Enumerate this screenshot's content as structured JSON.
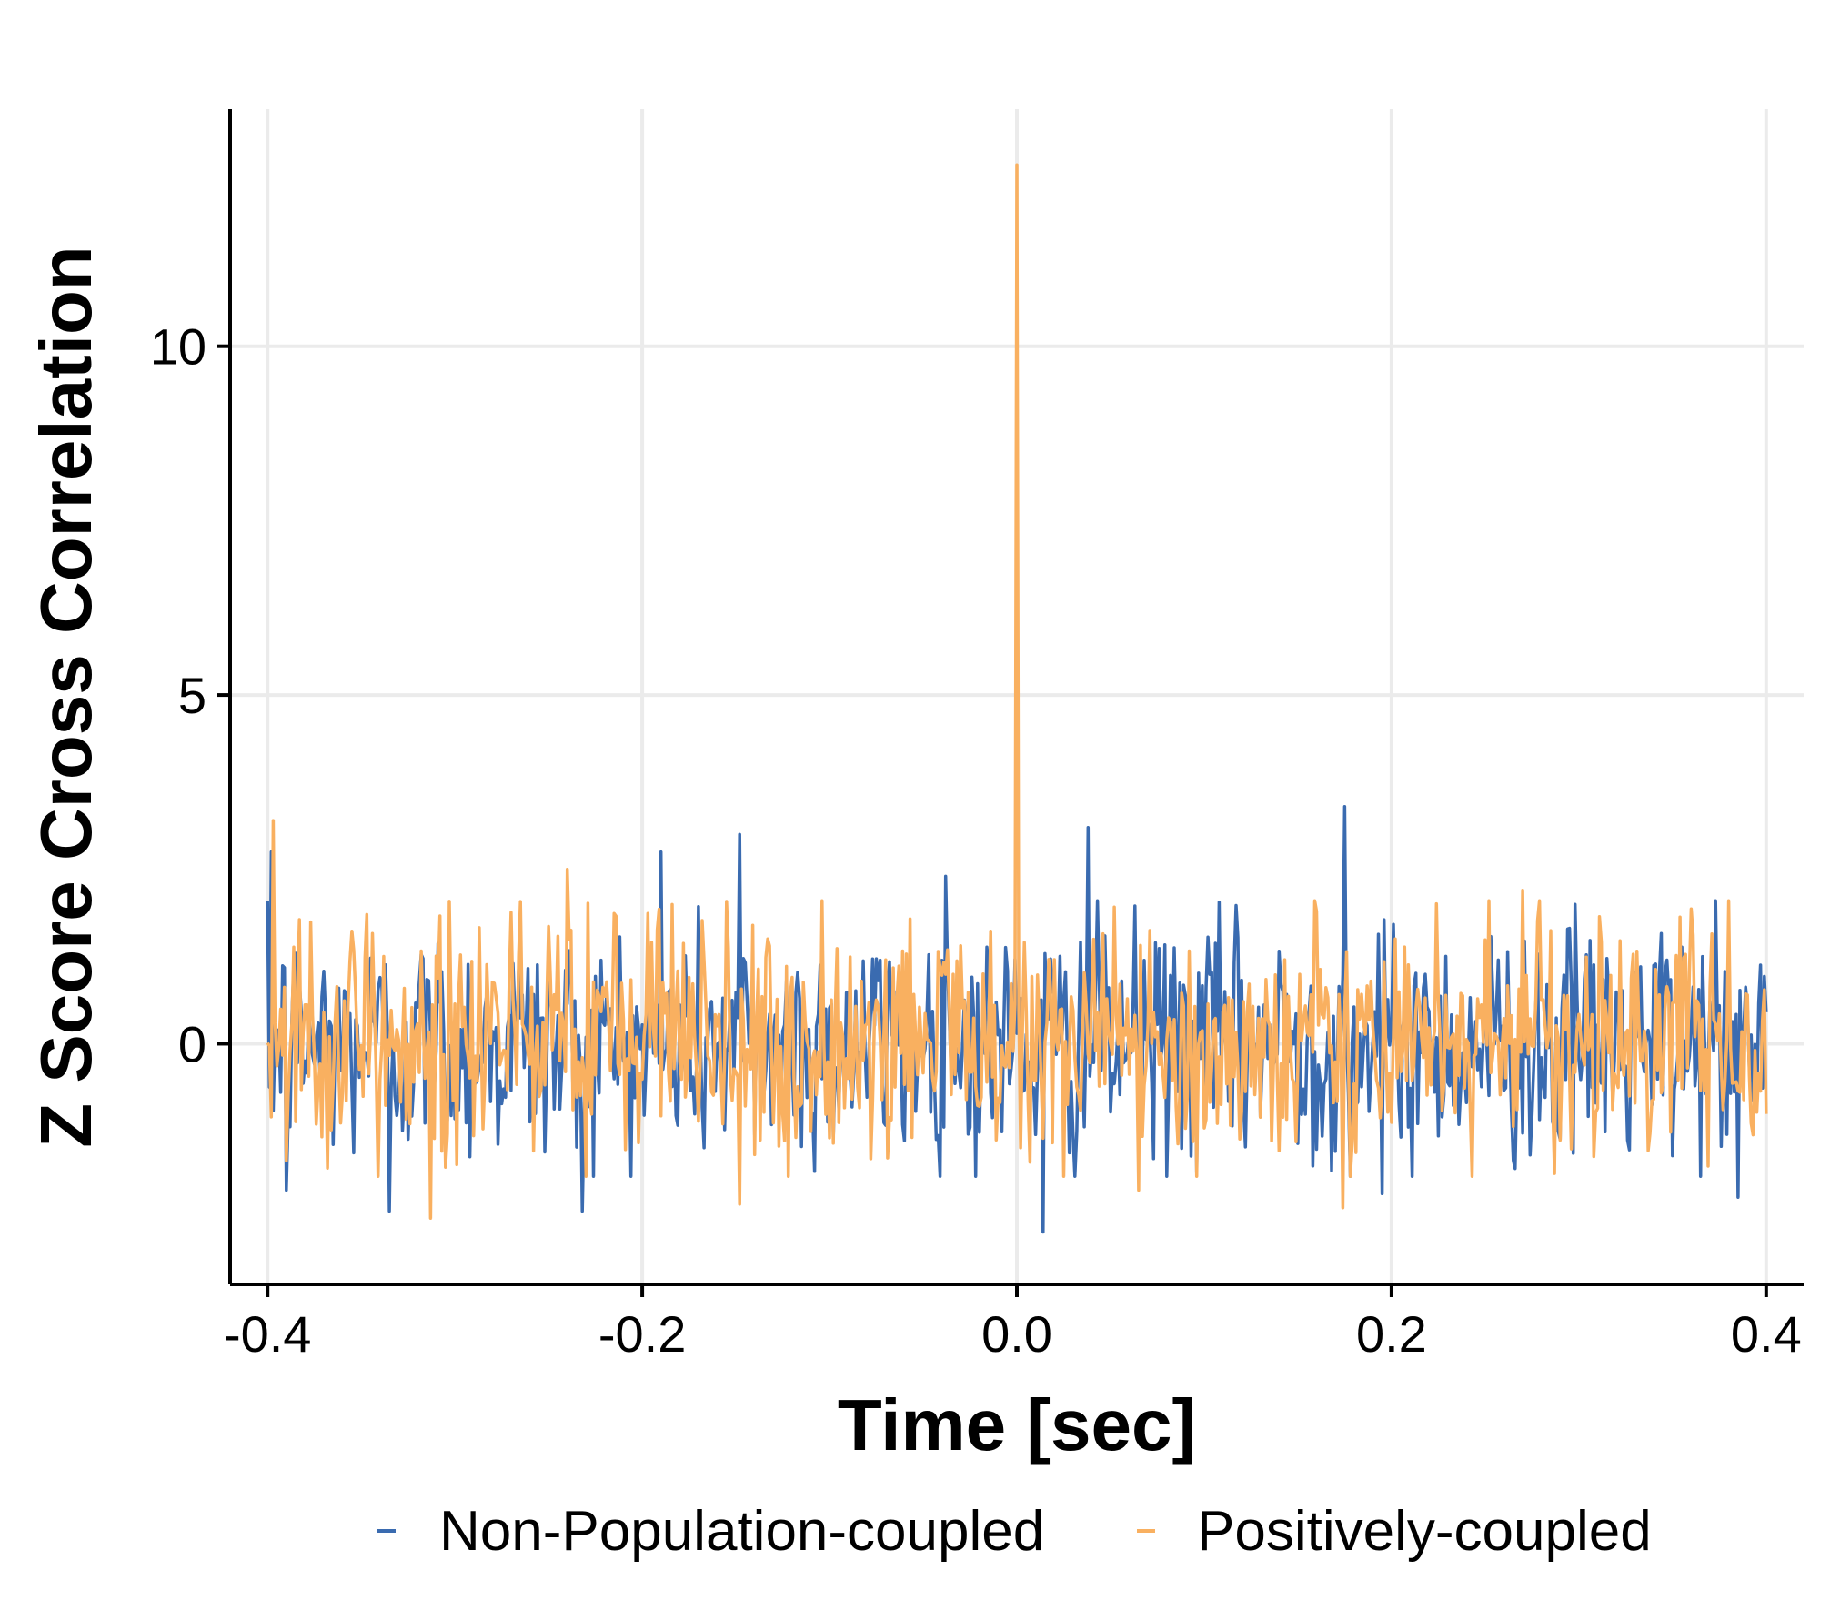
{
  "chart_data": {
    "type": "line",
    "title": "",
    "xlabel": "Time [sec]",
    "ylabel": "Z Score Cross Correlation",
    "xlim": [
      -0.42,
      0.42
    ],
    "ylim": [
      -3.45,
      13.4
    ],
    "x_ticks": [
      -0.4,
      -0.2,
      0.0,
      0.2,
      0.4
    ],
    "x_tick_labels": [
      "-0.4",
      "-0.2",
      "0.0",
      "0.2",
      "0.4"
    ],
    "y_ticks": [
      0,
      5,
      10
    ],
    "y_tick_labels": [
      "0",
      "5",
      "10"
    ],
    "grid": true,
    "legend": {
      "position": "bottom",
      "entries": [
        "Non-Population-coupled",
        "Positively-coupled"
      ]
    },
    "x_range": [
      -0.4,
      0.4
    ],
    "n_points": 801,
    "series": [
      {
        "name": "Non-Population-coupled",
        "color": "#3a6bb0",
        "summary": "noise around 0 (about -2.7 to 3.4)",
        "peaks": [
          [
            -0.398,
            2.75
          ],
          [
            -0.19,
            2.75
          ],
          [
            -0.148,
            3.0
          ],
          [
            -0.038,
            2.4
          ],
          [
            0.038,
            3.1
          ],
          [
            0.1745,
            3.4
          ]
        ],
        "troughs": [
          [
            -0.39,
            -2.1
          ],
          [
            -0.335,
            -2.4
          ],
          [
            -0.232,
            -2.4
          ],
          [
            0.014,
            -2.7
          ],
          [
            0.195,
            -2.15
          ],
          [
            0.385,
            -2.2
          ]
        ]
      },
      {
        "name": "Positively-coupled",
        "color": "#f9b060",
        "summary": "noise around 0 with a sharp peak of about 12.6 at 0.0 s",
        "peaks": [
          [
            -0.397,
            3.2
          ],
          [
            -0.24,
            2.5
          ],
          [
            0.0,
            12.6
          ],
          [
            0.27,
            2.2
          ]
        ],
        "troughs": [
          [
            -0.313,
            -2.5
          ],
          [
            -0.148,
            -2.3
          ],
          [
            0.065,
            -2.1
          ],
          [
            0.174,
            -2.35
          ]
        ]
      }
    ]
  },
  "colors": {
    "grid": "#ebebeb",
    "axis": "#000000",
    "background": "#ffffff"
  }
}
